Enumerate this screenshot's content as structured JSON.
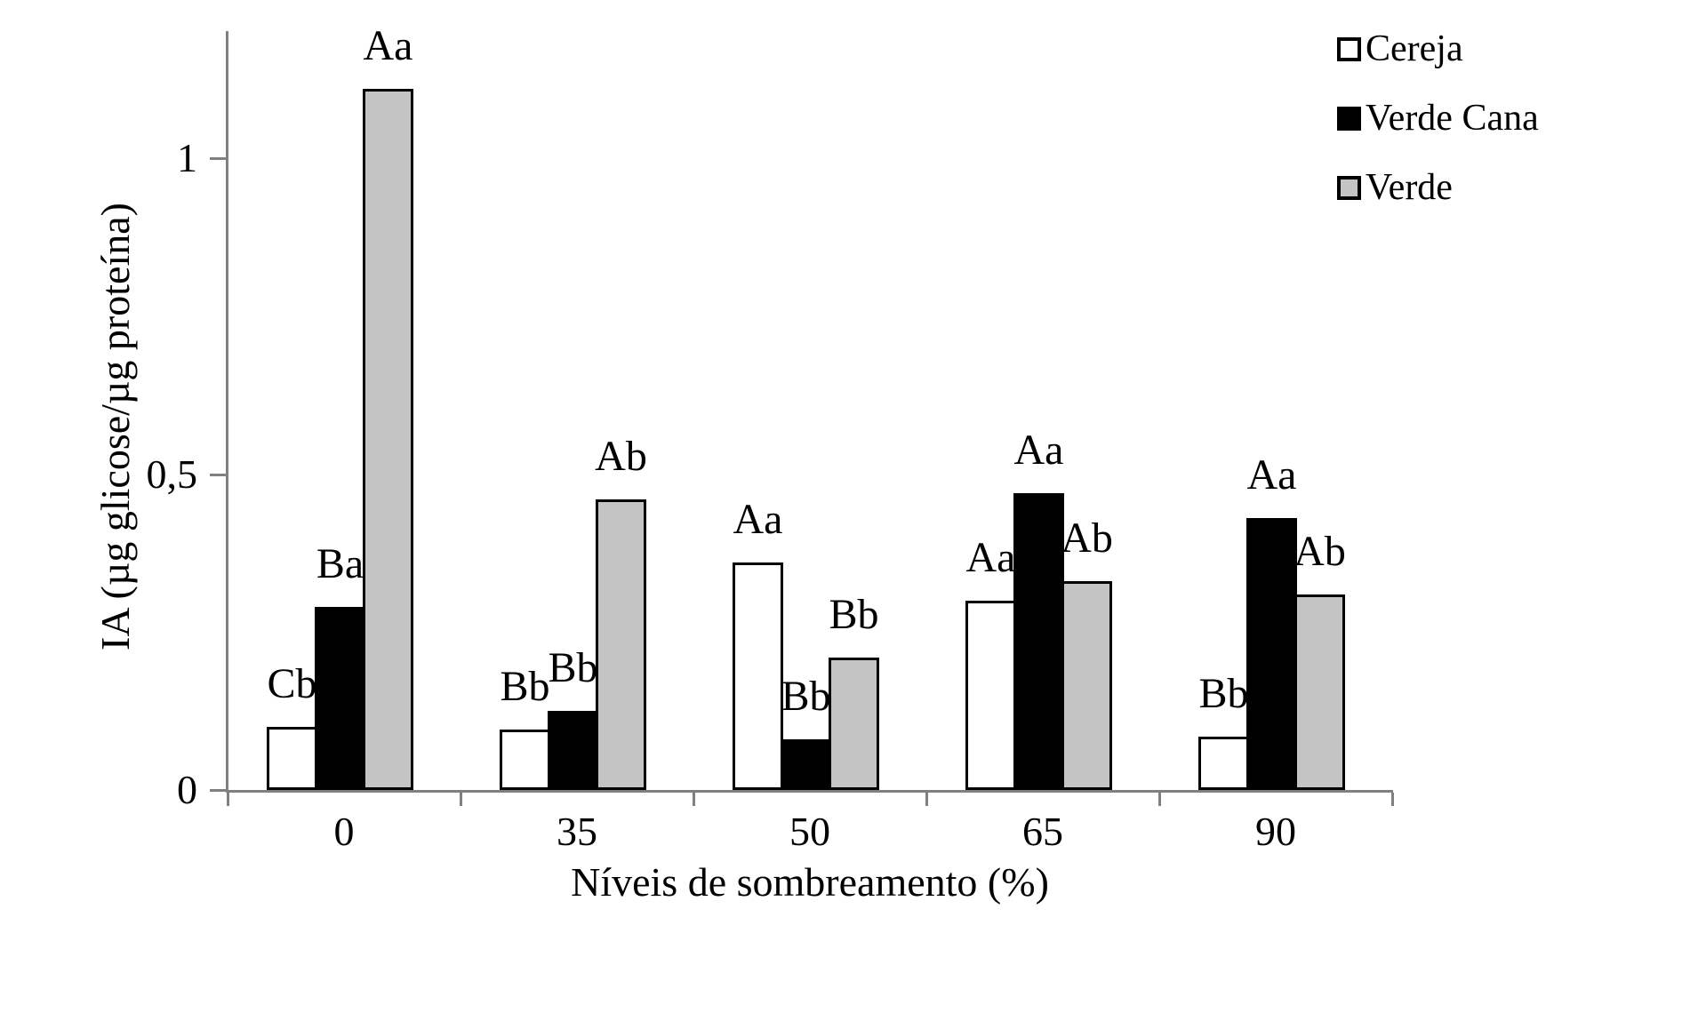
{
  "chart_data": {
    "type": "bar",
    "title": "",
    "xlabel": "Níveis de sombreamento (%)",
    "ylabel": "IA (µg glicose/µg proteína)",
    "categories": [
      "0",
      "35",
      "50",
      "65",
      "90"
    ],
    "series": [
      {
        "name": "Cereja",
        "fill": "#ffffff",
        "values": [
          0.1,
          0.095,
          0.36,
          0.3,
          0.085
        ],
        "point_labels": [
          "Cb",
          "Bb",
          "Aa",
          "Aa",
          "Bb"
        ]
      },
      {
        "name": "Verde Cana",
        "fill": "#000000",
        "values": [
          0.29,
          0.125,
          0.08,
          0.47,
          0.43
        ],
        "point_labels": [
          "Ba",
          "Bb",
          "Bb",
          "Aa",
          "Aa"
        ]
      },
      {
        "name": "Verde",
        "fill": "#c4c4c4",
        "values": [
          1.11,
          0.46,
          0.21,
          0.33,
          0.31
        ],
        "point_labels": [
          "Aa",
          "Ab",
          "Bb",
          "Ab",
          "Ab"
        ]
      }
    ],
    "y_ticks": [
      {
        "label": "0",
        "value": 0
      },
      {
        "label": "0,5",
        "value": 0.5
      },
      {
        "label": "1",
        "value": 1
      }
    ],
    "ylim": [
      0,
      1.2
    ],
    "grid": false,
    "legend_position": "top-right",
    "bar_border_color": "#000000",
    "axis_color": "#808080",
    "text_color": "#000000",
    "background_color": "#ffffff"
  }
}
